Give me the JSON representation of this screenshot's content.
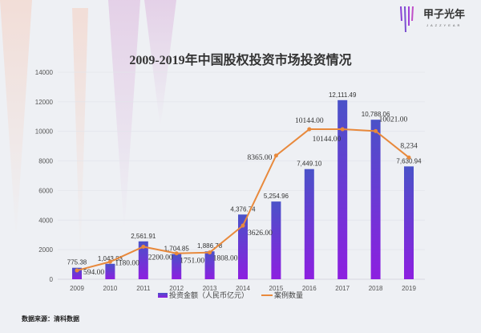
{
  "logo": {
    "name_cn": "甲子光年",
    "name_en": "JAZZYEAR"
  },
  "source": "数据来源：清科数据",
  "colors": {
    "bar_top": "#4a52c8",
    "bar_bottom": "#8d1fe0",
    "line": "#e8893c",
    "background": "#eef0f4"
  },
  "chart_data": {
    "type": "bar+line",
    "title": "2009-2019年中国股权投资市场投资情况",
    "categories": [
      "2009",
      "2010",
      "2011",
      "2012",
      "2013",
      "2014",
      "2015",
      "2016",
      "2017",
      "2018",
      "2019"
    ],
    "ylim": [
      0,
      14000
    ],
    "yticks": [
      "0",
      "2000",
      "4000",
      "6000",
      "8000",
      "10000",
      "12000",
      "14000"
    ],
    "grid": true,
    "legend_position": "bottom",
    "series": [
      {
        "name": "投资金额（人民币亿元）",
        "type": "bar",
        "values": [
          775.38,
          1043.83,
          2561.91,
          1704.85,
          1886.78,
          4376.74,
          5254.96,
          7449.1,
          12111.49,
          10788.06,
          7630.94
        ],
        "labels": [
          "775.38",
          "1,043.83",
          "2,561.91",
          "1,704.85",
          "1,886.78",
          "4,376.74",
          "5,254.96",
          "7,449.10",
          "12,111.49",
          "10,788.06",
          "7,630.94"
        ]
      },
      {
        "name": "案例数量",
        "type": "line",
        "values": [
          594,
          1180,
          2200,
          1751,
          1808,
          3626,
          8365,
          10144,
          10144,
          10021,
          8234
        ],
        "labels": [
          "594.00",
          "1180.00",
          "2200.00",
          "1751.00",
          "1808.00",
          "3626.00",
          "8365.00",
          "10144.00",
          "10144.00",
          "10021.00",
          "8,234"
        ]
      }
    ]
  }
}
